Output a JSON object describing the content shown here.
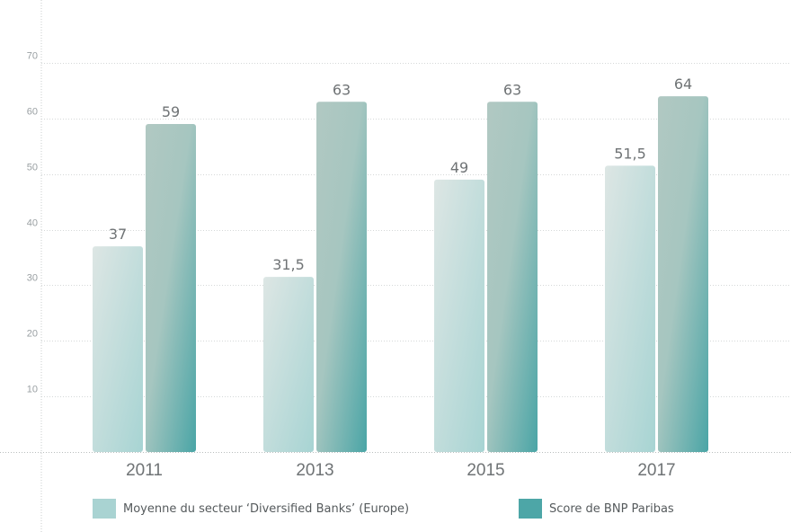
{
  "chart_data": {
    "type": "bar",
    "categories": [
      "2011",
      "2013",
      "2015",
      "2017"
    ],
    "series": [
      {
        "name": "Moyenne du secteur ‘Diversified Banks’ (Europe)",
        "values": [
          37,
          31.5,
          49,
          51.5
        ],
        "value_labels": [
          "37",
          "31,5",
          "49",
          "51,5"
        ]
      },
      {
        "name": "Score de BNP Paribas",
        "values": [
          59,
          63,
          63,
          64
        ],
        "value_labels": [
          "59",
          "63",
          "63",
          "64"
        ]
      }
    ],
    "y_ticks": [
      "10",
      "20",
      "30",
      "40",
      "50",
      "60",
      "70"
    ],
    "ylim": [
      0,
      73
    ],
    "grid": true,
    "legend_position": "bottom",
    "colors": {
      "series_1": "#a9d3d2",
      "series_2": "#4da6a7",
      "grid": "#d5d8d8"
    }
  }
}
